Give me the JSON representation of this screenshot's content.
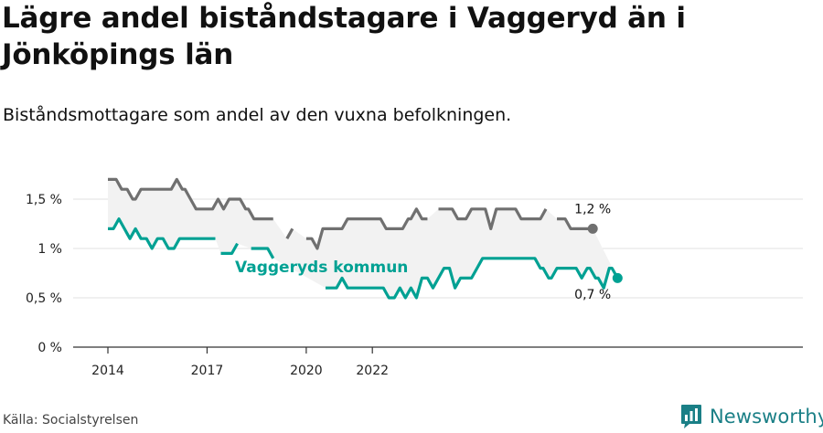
{
  "title": "Lägre andel biståndstagare i Vaggeryd än i Jönköpings län",
  "subtitle": "Biståndsmottagare som andel av den vuxna befolkningen.",
  "source": "Källa: Socialstyrelsen",
  "brand": "Newsworthy",
  "colors": {
    "region": "#707070",
    "municipality": "#00a193",
    "band": "#f2f2f2",
    "axis": "#333333",
    "grid": "#e2e2e2"
  },
  "chart_data": {
    "type": "line",
    "x_start": "2014-01",
    "ylim": [
      0,
      2
    ],
    "yticks": [
      0,
      0.5,
      1,
      1.5
    ],
    "ytick_labels": [
      "0 %",
      "0,5 %",
      "1 %",
      "1,5 %"
    ],
    "xticks": [
      "2014-01",
      "2017-01",
      "2020-01",
      "2022-01"
    ],
    "xtick_labels": [
      "2014",
      "2017",
      "2020",
      "2022"
    ],
    "grid": true,
    "series": [
      {
        "key": "region",
        "end_label": "1,2 %",
        "values": [
          1.7,
          1.7,
          1.7,
          1.7,
          1.65,
          1.6,
          1.6,
          1.6,
          1.55,
          1.5,
          1.5,
          1.55,
          1.6,
          1.6,
          1.6,
          1.6,
          1.6,
          1.6,
          1.6,
          1.6,
          1.6,
          1.6,
          1.6,
          1.6,
          1.65,
          1.7,
          1.65,
          1.6,
          1.6,
          1.55,
          1.5,
          1.45,
          1.4,
          1.4,
          1.4,
          1.4,
          1.4,
          1.4,
          1.4,
          1.45,
          1.5,
          1.45,
          1.4,
          1.45,
          1.5,
          1.5,
          1.5,
          1.5,
          1.5,
          1.45,
          1.4,
          1.4,
          1.35,
          1.3,
          1.3,
          1.3,
          1.3,
          1.3,
          1.3,
          1.3,
          1.3,
          null,
          null,
          null,
          null,
          1.1,
          1.15,
          1.2,
          null,
          null,
          null,
          null,
          1.1,
          1.1,
          1.1,
          1.05,
          1.0,
          1.1,
          1.2,
          1.2,
          1.2,
          1.2,
          1.2,
          1.2,
          1.2,
          1.2,
          1.25,
          1.3,
          1.3,
          1.3,
          1.3,
          1.3,
          1.3,
          1.3,
          1.3,
          1.3,
          1.3,
          1.3,
          1.3,
          1.3,
          1.25,
          1.2,
          1.2,
          1.2,
          1.2,
          1.2,
          1.2,
          1.2,
          1.25,
          1.3,
          1.3,
          1.35,
          1.4,
          1.35,
          1.3,
          1.3,
          1.3,
          null,
          null,
          null,
          1.4,
          1.4,
          1.4,
          1.4,
          1.4,
          1.4,
          1.35,
          1.3,
          1.3,
          1.3,
          1.3,
          1.35,
          1.4,
          1.4,
          1.4,
          1.4,
          1.4,
          1.4,
          1.3,
          1.2,
          1.3,
          1.4,
          1.4,
          1.4,
          1.4,
          1.4,
          1.4,
          1.4,
          1.4,
          1.35,
          1.3,
          1.3,
          1.3,
          1.3,
          1.3,
          1.3,
          1.3,
          1.3,
          1.35,
          1.4,
          null,
          null,
          null,
          1.3,
          1.3,
          1.3,
          1.3,
          1.25,
          1.2,
          1.2,
          1.2,
          1.2,
          1.2,
          1.2,
          1.2,
          1.2,
          1.2
        ]
      },
      {
        "key": "municipality",
        "name": "Vaggeryds kommun",
        "end_label": "0,7 %",
        "values": [
          1.2,
          1.2,
          1.2,
          1.25,
          1.3,
          1.25,
          1.2,
          1.15,
          1.1,
          1.15,
          1.2,
          1.15,
          1.1,
          1.1,
          1.1,
          1.05,
          1.0,
          1.05,
          1.1,
          1.1,
          1.1,
          1.05,
          1.0,
          1.0,
          1.0,
          1.05,
          1.1,
          1.1,
          1.1,
          1.1,
          1.1,
          1.1,
          1.1,
          1.1,
          1.1,
          1.1,
          1.1,
          1.1,
          1.1,
          1.1,
          null,
          0.95,
          0.95,
          0.95,
          0.95,
          0.95,
          1.0,
          1.05,
          null,
          null,
          null,
          null,
          1.0,
          1.0,
          1.0,
          1.0,
          1.0,
          1.0,
          1.0,
          0.95,
          0.9,
          null,
          null,
          null,
          null,
          null,
          null,
          null,
          null,
          null,
          null,
          null,
          null,
          null,
          null,
          null,
          null,
          null,
          null,
          0.6,
          0.6,
          0.6,
          0.6,
          0.6,
          0.65,
          0.7,
          0.65,
          0.6,
          0.6,
          0.6,
          0.6,
          0.6,
          0.6,
          0.6,
          0.6,
          0.6,
          0.6,
          0.6,
          0.6,
          0.6,
          0.6,
          0.55,
          0.5,
          0.5,
          0.5,
          0.55,
          0.6,
          0.55,
          0.5,
          0.55,
          0.6,
          0.55,
          0.5,
          0.6,
          0.7,
          0.7,
          0.7,
          0.65,
          0.6,
          0.65,
          0.7,
          0.75,
          0.8,
          0.8,
          0.8,
          0.7,
          0.6,
          0.65,
          0.7,
          0.7,
          0.7,
          0.7,
          0.7,
          0.75,
          0.8,
          0.85,
          0.9,
          0.9,
          0.9,
          0.9,
          0.9,
          0.9,
          0.9,
          0.9,
          0.9,
          0.9,
          0.9,
          0.9,
          0.9,
          0.9,
          0.9,
          0.9,
          0.9,
          0.9,
          0.9,
          0.9,
          0.85,
          0.8,
          0.8,
          0.75,
          0.7,
          0.7,
          0.75,
          0.8,
          0.8,
          0.8,
          0.8,
          0.8,
          0.8,
          0.8,
          0.8,
          0.75,
          0.7,
          0.75,
          0.8,
          0.8,
          0.75,
          0.7,
          0.7,
          0.65,
          0.6,
          0.7,
          0.8,
          0.8,
          0.75,
          0.7
        ]
      }
    ]
  }
}
